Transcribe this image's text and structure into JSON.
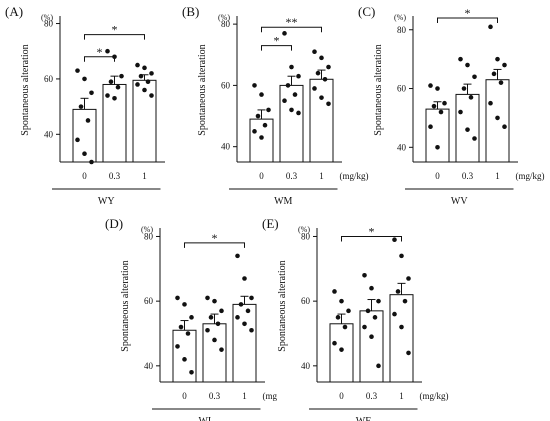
{
  "colors": {
    "ink": "#111111",
    "bar_fill": "#ffffff"
  },
  "chart_data": [
    {
      "type": "bar",
      "panel_label": "(A)",
      "group_label": "WY",
      "ylabel": "Spontaneous alteration",
      "unit_label": "(%)",
      "x_unit_label": "",
      "categories": [
        "0",
        "0.3",
        "1"
      ],
      "values": [
        49,
        58,
        59.5
      ],
      "sem": [
        4,
        3,
        2
      ],
      "points": [
        [
          63,
          60,
          55,
          50,
          45,
          38,
          33,
          30
        ],
        [
          70,
          68,
          61,
          59,
          57,
          54,
          53
        ],
        [
          65,
          64,
          62,
          61,
          59,
          58,
          56,
          54
        ]
      ],
      "yticks": [
        40,
        60,
        80
      ],
      "ylim": [
        30,
        82
      ],
      "significance": [
        {
          "from": 0,
          "to": 1,
          "label": "*",
          "y": 68
        },
        {
          "from": 0,
          "to": 2,
          "label": "*",
          "y": 76
        }
      ]
    },
    {
      "type": "bar",
      "panel_label": "(B)",
      "group_label": "WM",
      "ylabel": "Spontaneous alteration",
      "unit_label": "(%)",
      "x_unit_label": "(mg/kg)",
      "categories": [
        "0",
        "0.3",
        "1"
      ],
      "values": [
        49,
        60,
        62
      ],
      "sem": [
        3,
        3,
        3
      ],
      "points": [
        [
          60,
          57,
          52,
          50,
          47,
          45,
          43
        ],
        [
          77,
          66,
          63,
          60,
          57,
          55,
          52,
          51
        ],
        [
          71,
          69,
          66,
          64,
          62,
          59,
          56,
          54
        ]
      ],
      "yticks": [
        40,
        60,
        80
      ],
      "ylim": [
        35,
        82
      ],
      "significance": [
        {
          "from": 0,
          "to": 1,
          "label": "*",
          "y": 73
        },
        {
          "from": 0,
          "to": 2,
          "label": "**",
          "y": 79
        }
      ]
    },
    {
      "type": "bar",
      "panel_label": "(C)",
      "group_label": "WV",
      "ylabel": "Spontaneous alteration",
      "unit_label": "(%)",
      "x_unit_label": "(mg/kg)",
      "categories": [
        "0",
        "0.3",
        "1"
      ],
      "values": [
        53,
        58,
        63
      ],
      "sem": [
        2.5,
        3.5,
        3.5
      ],
      "points": [
        [
          61,
          60,
          55,
          54,
          52,
          47,
          40
        ],
        [
          70,
          68,
          64,
          60,
          57,
          52,
          46,
          43
        ],
        [
          81,
          70,
          68,
          65,
          62,
          55,
          50,
          47
        ]
      ],
      "yticks": [
        40,
        60,
        80
      ],
      "ylim": [
        35,
        84
      ],
      "significance": [
        {
          "from": 0,
          "to": 2,
          "label": "*",
          "y": 84
        }
      ]
    },
    {
      "type": "bar",
      "panel_label": "(D)",
      "group_label": "WL",
      "ylabel": "Spontaneous alteration",
      "unit_label": "(%)",
      "x_unit_label": "(mg",
      "categories": [
        "0",
        "0.3",
        "1"
      ],
      "values": [
        51,
        53,
        59
      ],
      "sem": [
        3,
        3,
        2.5
      ],
      "points": [
        [
          61,
          59,
          55,
          52,
          50,
          46,
          42,
          38
        ],
        [
          61,
          60,
          57,
          55,
          53,
          51,
          48,
          45
        ],
        [
          74,
          67,
          61,
          59,
          57,
          55,
          53,
          51
        ]
      ],
      "yticks": [
        40,
        60,
        80
      ],
      "ylim": [
        35,
        82
      ],
      "significance": [
        {
          "from": 0,
          "to": 2,
          "label": "*",
          "y": 78
        }
      ]
    },
    {
      "type": "bar",
      "panel_label": "(E)",
      "group_label": "WF",
      "ylabel": "Spontaneous alteration",
      "unit_label": "(%)",
      "x_unit_label": "(mg/kg)",
      "categories": [
        "0",
        "0.3",
        "1"
      ],
      "values": [
        53,
        57,
        62
      ],
      "sem": [
        3,
        3.5,
        3.5
      ],
      "points": [
        [
          63,
          60,
          57,
          55,
          52,
          47,
          45
        ],
        [
          68,
          64,
          60,
          57,
          55,
          52,
          49,
          40
        ],
        [
          79,
          74,
          67,
          63,
          60,
          56,
          52,
          44
        ]
      ],
      "yticks": [
        40,
        60,
        80
      ],
      "ylim": [
        35,
        82
      ],
      "significance": [
        {
          "from": 0,
          "to": 2,
          "label": "*",
          "y": 80
        }
      ]
    }
  ]
}
